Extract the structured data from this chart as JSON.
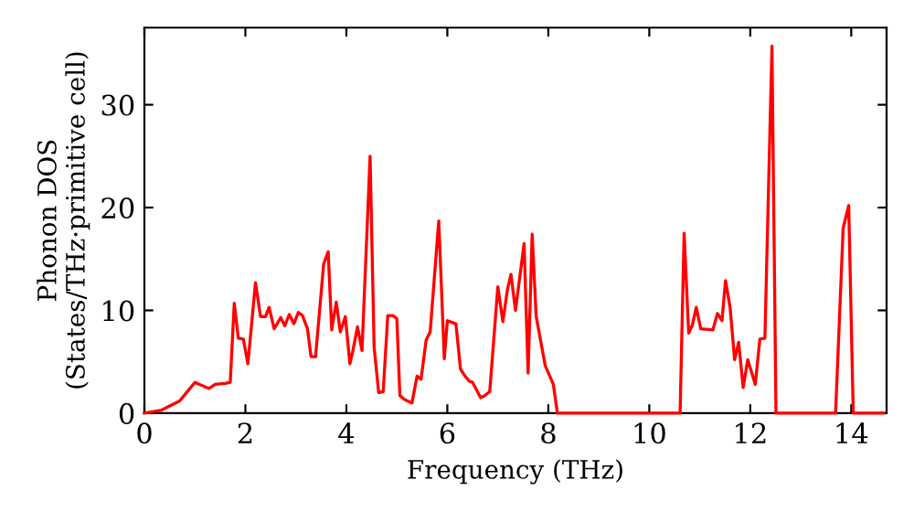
{
  "chart_data": {
    "type": "line",
    "xlabel": "Frequency (THz)",
    "ylabel": "Phonon DOS\n(States/THz·primitive cell)",
    "x": [
      0,
      0.34,
      0.7,
      1.0,
      1.28,
      1.4,
      1.6,
      1.7,
      1.78,
      1.86,
      1.96,
      2.05,
      2.2,
      2.3,
      2.4,
      2.47,
      2.57,
      2.7,
      2.78,
      2.87,
      2.96,
      3.05,
      3.13,
      3.23,
      3.3,
      3.39,
      3.47,
      3.55,
      3.64,
      3.71,
      3.8,
      3.88,
      3.98,
      4.07,
      4.13,
      4.22,
      4.31,
      4.47,
      4.55,
      4.64,
      4.73,
      4.82,
      4.92,
      5.0,
      5.06,
      5.16,
      5.3,
      5.4,
      5.48,
      5.58,
      5.66,
      5.83,
      5.94,
      6.0,
      6.17,
      6.26,
      6.35,
      6.44,
      6.5,
      6.66,
      6.74,
      6.84,
      7.0,
      7.1,
      7.19,
      7.26,
      7.35,
      7.52,
      7.6,
      7.68,
      7.76,
      7.94,
      8.1,
      8.18,
      10.61,
      10.69,
      10.78,
      10.85,
      10.93,
      11.02,
      11.26,
      11.35,
      11.44,
      11.51,
      11.6,
      11.69,
      11.77,
      11.86,
      11.95,
      12.1,
      12.19,
      12.29,
      12.43,
      12.51,
      13.69,
      13.84,
      13.95,
      14.04,
      14.64
    ],
    "series": [
      {
        "color": "#ff0000",
        "values": [
          0,
          0.3,
          1.2,
          3.0,
          2.4,
          2.8,
          2.9,
          3.0,
          10.7,
          7.3,
          7.2,
          4.8,
          12.7,
          9.4,
          9.4,
          10.3,
          8.2,
          9.3,
          8.5,
          9.6,
          8.7,
          9.8,
          9.5,
          8.2,
          5.5,
          5.5,
          10.0,
          14.5,
          15.7,
          8.1,
          10.8,
          7.9,
          9.4,
          4.8,
          6.1,
          8.4,
          6.1,
          25.0,
          6.4,
          2.0,
          2.1,
          9.5,
          9.5,
          9.2,
          1.7,
          1.3,
          1.0,
          3.6,
          3.3,
          7.1,
          7.9,
          18.7,
          5.3,
          9.0,
          8.7,
          4.3,
          3.6,
          3.1,
          3.0,
          1.5,
          1.7,
          2.1,
          12.3,
          8.9,
          12.0,
          13.5,
          10.0,
          16.5,
          3.9,
          17.4,
          9.4,
          4.6,
          2.8,
          0,
          0,
          17.5,
          7.8,
          8.5,
          10.3,
          8.2,
          8.1,
          9.7,
          9.0,
          12.9,
          10.3,
          5.2,
          6.9,
          2.5,
          5.2,
          2.8,
          7.2,
          7.3,
          35.7,
          0,
          0,
          18.0,
          20.2,
          0,
          0
        ]
      }
    ],
    "xlim": [
      0,
      14.7
    ],
    "ylim": [
      0,
      37.5
    ],
    "xticks": [
      0,
      2,
      4,
      6,
      8,
      10,
      12,
      14
    ],
    "yticks": [
      0,
      10,
      20,
      30
    ],
    "grid": false,
    "legend": false,
    "marker": "none",
    "line_style": "solid"
  }
}
